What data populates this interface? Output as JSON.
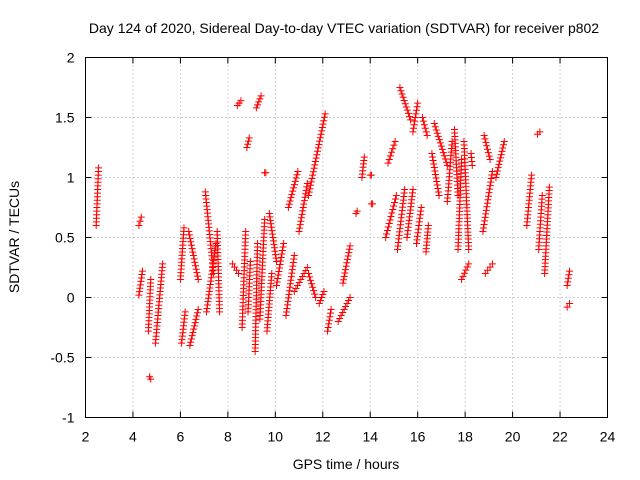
{
  "chart_data": {
    "type": "scatter",
    "title": "Day 124 of 2020, Sidereal Day-to-day VTEC variation (SDTVAR) for receiver p802",
    "xlabel": "GPS time / hours",
    "ylabel": "SDTVAR / TECUs",
    "xlim": [
      2,
      24
    ],
    "ylim": [
      -1,
      2
    ],
    "xticks": [
      2,
      4,
      6,
      8,
      10,
      12,
      14,
      16,
      18,
      20,
      22,
      24
    ],
    "yticks": [
      -1,
      -0.5,
      0,
      0.5,
      1,
      1.5,
      2
    ],
    "ytick_labels": [
      "-1",
      "-0.5",
      "0",
      "0.5",
      "1",
      "1.5",
      "2"
    ],
    "grid": true,
    "marker": "+",
    "color": "#ff0000",
    "segments": [
      {
        "x0": 2.45,
        "y0": 0.6,
        "x1": 2.55,
        "y1": 1.08
      },
      {
        "x0": 4.25,
        "y0": 0.6,
        "x1": 4.35,
        "y1": 0.67
      },
      {
        "x0": 4.25,
        "y0": 0.02,
        "x1": 4.4,
        "y1": 0.22
      },
      {
        "x0": 4.65,
        "y0": -0.28,
        "x1": 4.75,
        "y1": 0.15
      },
      {
        "x0": 4.7,
        "y0": -0.66,
        "x1": 4.75,
        "y1": -0.68
      },
      {
        "x0": 4.95,
        "y0": -0.38,
        "x1": 5.25,
        "y1": 0.28
      },
      {
        "x0": 6.0,
        "y0": 0.15,
        "x1": 6.15,
        "y1": 0.58
      },
      {
        "x0": 6.05,
        "y0": -0.38,
        "x1": 6.2,
        "y1": -0.12
      },
      {
        "x0": 6.35,
        "y0": 0.55,
        "x1": 6.75,
        "y1": 0.15
      },
      {
        "x0": 6.4,
        "y0": -0.4,
        "x1": 6.75,
        "y1": -0.1
      },
      {
        "x0": 7.05,
        "y0": 0.88,
        "x1": 7.4,
        "y1": 0.2
      },
      {
        "x0": 7.1,
        "y0": -0.12,
        "x1": 7.5,
        "y1": 0.45
      },
      {
        "x0": 7.55,
        "y0": 0.55,
        "x1": 7.65,
        "y1": -0.12
      },
      {
        "x0": 8.2,
        "y0": 0.28,
        "x1": 8.45,
        "y1": 0.2
      },
      {
        "x0": 8.4,
        "y0": 1.6,
        "x1": 8.55,
        "y1": 1.64
      },
      {
        "x0": 8.6,
        "y0": -0.25,
        "x1": 8.75,
        "y1": 0.55
      },
      {
        "x0": 8.8,
        "y0": 1.25,
        "x1": 8.9,
        "y1": 1.33
      },
      {
        "x0": 8.85,
        "y0": -0.12,
        "x1": 8.95,
        "y1": 0.3
      },
      {
        "x0": 9.15,
        "y0": -0.45,
        "x1": 9.25,
        "y1": 0.45
      },
      {
        "x0": 9.2,
        "y0": 1.58,
        "x1": 9.4,
        "y1": 1.68
      },
      {
        "x0": 9.35,
        "y0": -0.18,
        "x1": 9.55,
        "y1": 0.65
      },
      {
        "x0": 9.55,
        "y0": 1.04,
        "x1": 9.6,
        "y1": 1.04
      },
      {
        "x0": 9.65,
        "y0": -0.28,
        "x1": 9.85,
        "y1": 0.2
      },
      {
        "x0": 9.75,
        "y0": 0.7,
        "x1": 10.05,
        "y1": 0.3
      },
      {
        "x0": 10.05,
        "y0": 0.1,
        "x1": 10.35,
        "y1": 0.45
      },
      {
        "x0": 10.45,
        "y0": -0.15,
        "x1": 10.8,
        "y1": 0.35
      },
      {
        "x0": 10.55,
        "y0": 0.75,
        "x1": 10.95,
        "y1": 1.05
      },
      {
        "x0": 10.8,
        "y0": 0.05,
        "x1": 11.35,
        "y1": 0.25
      },
      {
        "x0": 11.0,
        "y0": 0.55,
        "x1": 11.35,
        "y1": 0.95
      },
      {
        "x0": 11.4,
        "y0": 0.2,
        "x1": 11.7,
        "y1": 0.0
      },
      {
        "x0": 11.4,
        "y0": 0.85,
        "x1": 12.1,
        "y1": 1.53
      },
      {
        "x0": 11.85,
        "y0": -0.05,
        "x1": 12.05,
        "y1": 0.05
      },
      {
        "x0": 12.2,
        "y0": -0.28,
        "x1": 12.35,
        "y1": -0.1
      },
      {
        "x0": 12.65,
        "y0": -0.2,
        "x1": 13.15,
        "y1": 0.0
      },
      {
        "x0": 12.85,
        "y0": 0.12,
        "x1": 13.15,
        "y1": 0.43
      },
      {
        "x0": 13.4,
        "y0": 0.7,
        "x1": 13.45,
        "y1": 0.72
      },
      {
        "x0": 13.65,
        "y0": 1.0,
        "x1": 13.75,
        "y1": 1.17
      },
      {
        "x0": 14.0,
        "y0": 1.02,
        "x1": 14.05,
        "y1": 1.02
      },
      {
        "x0": 14.05,
        "y0": 0.78,
        "x1": 14.1,
        "y1": 0.78
      },
      {
        "x0": 14.65,
        "y0": 0.5,
        "x1": 15.1,
        "y1": 0.85
      },
      {
        "x0": 14.75,
        "y0": 1.12,
        "x1": 15.05,
        "y1": 1.3
      },
      {
        "x0": 15.15,
        "y0": 0.4,
        "x1": 15.45,
        "y1": 0.9
      },
      {
        "x0": 15.25,
        "y0": 1.75,
        "x1": 15.7,
        "y1": 1.48
      },
      {
        "x0": 15.55,
        "y0": 0.5,
        "x1": 15.8,
        "y1": 0.9
      },
      {
        "x0": 15.8,
        "y0": 1.38,
        "x1": 16.0,
        "y1": 1.62
      },
      {
        "x0": 15.95,
        "y0": 0.45,
        "x1": 16.15,
        "y1": 0.75
      },
      {
        "x0": 16.2,
        "y0": 1.5,
        "x1": 16.4,
        "y1": 1.35
      },
      {
        "x0": 16.35,
        "y0": 0.38,
        "x1": 16.45,
        "y1": 0.6
      },
      {
        "x0": 16.6,
        "y0": 1.2,
        "x1": 16.9,
        "y1": 0.85
      },
      {
        "x0": 16.7,
        "y0": 1.45,
        "x1": 17.25,
        "y1": 1.1
      },
      {
        "x0": 17.25,
        "y0": 0.8,
        "x1": 17.45,
        "y1": 1.3
      },
      {
        "x0": 17.55,
        "y0": 1.4,
        "x1": 17.7,
        "y1": 0.85
      },
      {
        "x0": 17.7,
        "y0": 0.4,
        "x1": 17.85,
        "y1": 1.15
      },
      {
        "x0": 17.85,
        "y0": 0.15,
        "x1": 18.15,
        "y1": 0.28
      },
      {
        "x0": 17.95,
        "y0": 1.3,
        "x1": 18.15,
        "y1": 0.4
      },
      {
        "x0": 18.25,
        "y0": 1.2,
        "x1": 18.3,
        "y1": 1.1
      },
      {
        "x0": 18.75,
        "y0": 0.55,
        "x1": 19.15,
        "y1": 1.05
      },
      {
        "x0": 18.8,
        "y0": 1.35,
        "x1": 19.05,
        "y1": 1.15
      },
      {
        "x0": 18.85,
        "y0": 0.2,
        "x1": 19.15,
        "y1": 0.28
      },
      {
        "x0": 19.3,
        "y0": 1.0,
        "x1": 19.65,
        "y1": 1.3
      },
      {
        "x0": 20.6,
        "y0": 0.6,
        "x1": 20.8,
        "y1": 1.02
      },
      {
        "x0": 21.05,
        "y0": 1.36,
        "x1": 21.15,
        "y1": 1.38
      },
      {
        "x0": 21.1,
        "y0": 0.4,
        "x1": 21.25,
        "y1": 0.85
      },
      {
        "x0": 21.35,
        "y0": 0.2,
        "x1": 21.55,
        "y1": 0.92
      },
      {
        "x0": 22.3,
        "y0": -0.08,
        "x1": 22.4,
        "y1": -0.05
      },
      {
        "x0": 22.3,
        "y0": 0.1,
        "x1": 22.4,
        "y1": 0.22
      }
    ]
  }
}
